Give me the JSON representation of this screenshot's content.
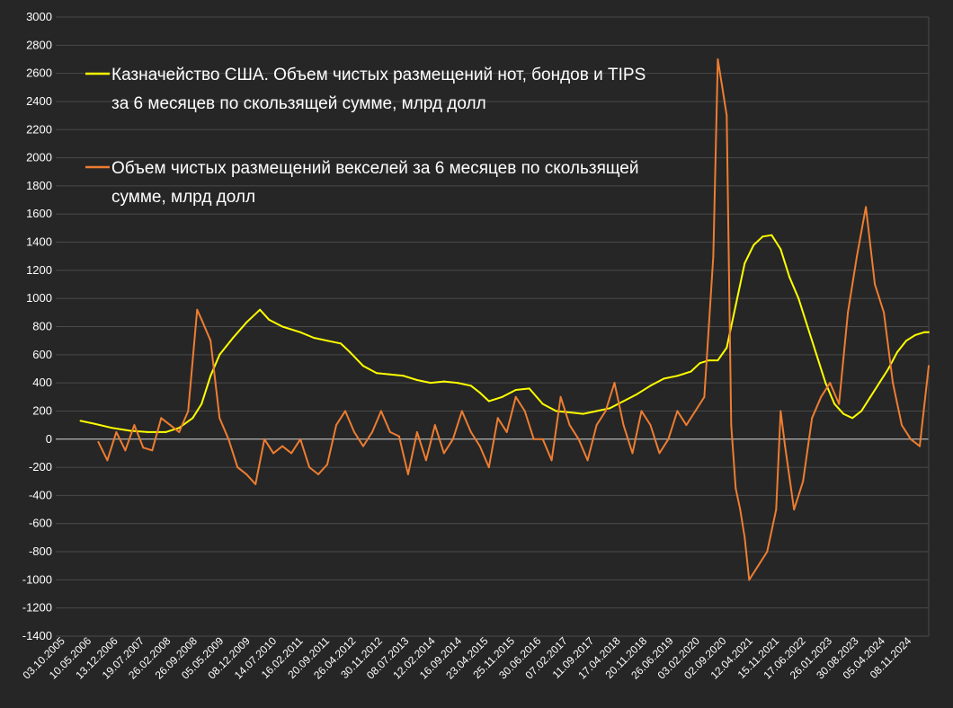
{
  "chart_data": {
    "type": "line",
    "title": "",
    "xlabel": "",
    "ylabel": "",
    "ylim": [
      -1400,
      3000
    ],
    "y_ticks": [
      3000,
      2800,
      2600,
      2400,
      2200,
      2000,
      1800,
      1600,
      1400,
      1200,
      1000,
      800,
      600,
      400,
      200,
      0,
      -200,
      -400,
      -600,
      -800,
      -1000,
      -1200,
      -1400
    ],
    "x_tick_labels": [
      "03.10.2005",
      "10.05.2006",
      "13.12.2006",
      "19.07.2007",
      "26.02.2008",
      "26.09.2008",
      "05.05.2009",
      "08.12.2009",
      "14.07.2010",
      "16.02.2011",
      "20.09.2011",
      "26.04.2012",
      "30.11.2012",
      "08.07.2013",
      "12.02.2014",
      "16.09.2014",
      "23.04.2015",
      "25.11.2015",
      "30.06.2016",
      "07.02.2017",
      "11.09.2017",
      "17.04.2018",
      "20.11.2018",
      "26.06.2019",
      "03.02.2020",
      "02.09.2020",
      "12.04.2021",
      "15.11.2021",
      "17.06.2022",
      "26.01.2023",
      "30.08.2023",
      "05.04.2024",
      "08.11.2024"
    ],
    "grid": "horizontal",
    "legend_position": "top-left",
    "x_unit": "year",
    "series": [
      {
        "name": "Казначейство США. Объем чистых размещений нот, бондов и TIPS за 6 месяцев по скользящей сумме, млрд долл",
        "legend_lines": [
          "Казначейство США. Объем чистых размещений нот, бондов и TIPS",
          "за 6 месяцев по скользящей сумме, млрд долл"
        ],
        "color": "#ffff00",
        "x": [
          2006.3,
          2006.6,
          2007.0,
          2007.4,
          2007.8,
          2008.2,
          2008.5,
          2008.8,
          2009.0,
          2009.2,
          2009.4,
          2009.7,
          2010.0,
          2010.3,
          2010.5,
          2010.8,
          2011.2,
          2011.5,
          2011.8,
          2012.1,
          2012.3,
          2012.6,
          2012.9,
          2013.2,
          2013.5,
          2013.8,
          2014.1,
          2014.4,
          2014.7,
          2015.0,
          2015.2,
          2015.4,
          2015.7,
          2016.0,
          2016.3,
          2016.6,
          2016.9,
          2017.2,
          2017.5,
          2017.8,
          2018.1,
          2018.4,
          2018.7,
          2019.0,
          2019.3,
          2019.6,
          2019.9,
          2020.1,
          2020.3,
          2020.5,
          2020.7,
          2020.9,
          2021.1,
          2021.3,
          2021.5,
          2021.7,
          2021.9,
          2022.1,
          2022.3,
          2022.5,
          2022.7,
          2022.9,
          2023.1,
          2023.3,
          2023.5,
          2023.7,
          2023.9,
          2024.1,
          2024.3,
          2024.5,
          2024.7,
          2024.9,
          2025.1,
          2025.2
        ],
        "values": [
          130,
          110,
          80,
          60,
          50,
          50,
          80,
          150,
          250,
          450,
          600,
          720,
          830,
          920,
          850,
          800,
          760,
          720,
          700,
          680,
          620,
          520,
          470,
          460,
          450,
          420,
          400,
          410,
          400,
          380,
          330,
          270,
          300,
          350,
          360,
          250,
          200,
          190,
          180,
          200,
          220,
          270,
          320,
          380,
          430,
          450,
          480,
          540,
          560,
          560,
          650,
          950,
          1250,
          1380,
          1440,
          1450,
          1350,
          1150,
          1000,
          800,
          600,
          400,
          250,
          180,
          150,
          200,
          300,
          400,
          500,
          620,
          700,
          740,
          760,
          760
        ]
      },
      {
        "name": "Объем чистых размещений векселей за 6 месяцев по скользящей сумме, млрд долл",
        "legend_lines": [
          "Объем чистых размещений векселей за 6 месяцев по скользящей",
          "сумме, млрд долл"
        ],
        "color": "#ed7d31",
        "x": [
          2006.7,
          2006.9,
          2007.1,
          2007.3,
          2007.5,
          2007.7,
          2007.9,
          2008.1,
          2008.3,
          2008.5,
          2008.7,
          2008.9,
          2009.0,
          2009.2,
          2009.4,
          2009.6,
          2009.8,
          2010.0,
          2010.2,
          2010.4,
          2010.6,
          2010.8,
          2011.0,
          2011.2,
          2011.4,
          2011.6,
          2011.8,
          2012.0,
          2012.2,
          2012.4,
          2012.6,
          2012.8,
          2013.0,
          2013.2,
          2013.4,
          2013.6,
          2013.8,
          2014.0,
          2014.2,
          2014.4,
          2014.6,
          2014.8,
          2015.0,
          2015.2,
          2015.4,
          2015.6,
          2015.8,
          2016.0,
          2016.2,
          2016.4,
          2016.6,
          2016.8,
          2017.0,
          2017.2,
          2017.4,
          2017.6,
          2017.8,
          2018.0,
          2018.2,
          2018.4,
          2018.6,
          2018.8,
          2019.0,
          2019.2,
          2019.4,
          2019.6,
          2019.8,
          2020.0,
          2020.2,
          2020.4,
          2020.5,
          2020.6,
          2020.7,
          2020.8,
          2020.9,
          2021.0,
          2021.1,
          2021.2,
          2021.4,
          2021.6,
          2021.8,
          2021.9,
          2022.0,
          2022.2,
          2022.4,
          2022.6,
          2022.8,
          2023.0,
          2023.2,
          2023.4,
          2023.6,
          2023.8,
          2024.0,
          2024.2,
          2024.4,
          2024.6,
          2024.8,
          2025.0,
          2025.2
        ],
        "values": [
          -20,
          -150,
          50,
          -80,
          100,
          -60,
          -80,
          150,
          100,
          50,
          200,
          920,
          850,
          700,
          150,
          0,
          -200,
          -250,
          -320,
          0,
          -100,
          -50,
          -100,
          0,
          -200,
          -250,
          -180,
          100,
          200,
          50,
          -50,
          50,
          200,
          50,
          20,
          -250,
          50,
          -150,
          100,
          -100,
          0,
          200,
          50,
          -50,
          -200,
          150,
          50,
          300,
          200,
          0,
          0,
          -150,
          300,
          100,
          0,
          -150,
          100,
          200,
          400,
          100,
          -100,
          200,
          100,
          -100,
          0,
          200,
          100,
          200,
          300,
          1300,
          2700,
          2500,
          2300,
          100,
          -350,
          -500,
          -700,
          -1000,
          -900,
          -800,
          -500,
          200,
          -50,
          -500,
          -300,
          150,
          300,
          400,
          250,
          900,
          1300,
          1650,
          1100,
          900,
          400,
          100,
          0,
          -50,
          520
        ]
      }
    ]
  }
}
